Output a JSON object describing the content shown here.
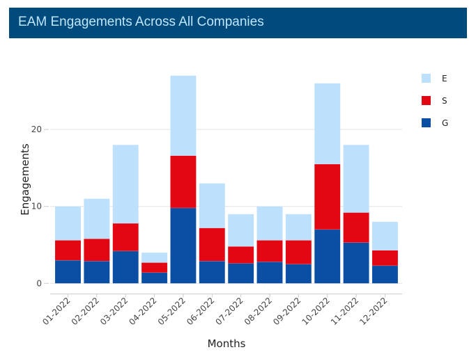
{
  "header": {
    "title": "EAM Engagements Across All Companies",
    "background_color": "#004B7C",
    "text_color": "#BFE5FF"
  },
  "chart_data": {
    "type": "bar",
    "stacked": true,
    "title": "EAM Engagements Across All Companies",
    "xlabel": "Months",
    "ylabel": "Engagements",
    "ylim": [
      0,
      28
    ],
    "yticks": [
      0,
      10,
      20
    ],
    "grid": true,
    "legend_position": "top-right",
    "categories": [
      "01-2022",
      "02-2022",
      "03-2022",
      "04-2022",
      "05-2022",
      "06-2022",
      "07-2022",
      "08-2022",
      "09-2022",
      "10-2022",
      "11-2022",
      "12-2022"
    ],
    "series": [
      {
        "name": "G",
        "color": "#0A4FA3",
        "values": [
          3.0,
          2.9,
          4.2,
          1.4,
          9.8,
          2.9,
          2.6,
          2.8,
          2.5,
          7.0,
          5.3,
          2.3
        ]
      },
      {
        "name": "S",
        "color": "#E30613",
        "values": [
          2.6,
          2.9,
          3.6,
          1.3,
          6.8,
          4.3,
          2.2,
          2.8,
          3.1,
          8.5,
          3.9,
          2.0
        ]
      },
      {
        "name": "E",
        "color": "#BDE0FD",
        "values": [
          4.4,
          5.2,
          10.2,
          1.3,
          10.4,
          5.8,
          4.2,
          4.4,
          3.4,
          10.5,
          8.8,
          3.7
        ]
      }
    ],
    "totals": [
      10,
      11,
      18,
      4,
      27,
      13,
      9,
      10,
      9,
      26,
      18,
      8
    ],
    "legend": [
      {
        "label": "E",
        "color": "#BDE0FD"
      },
      {
        "label": "S",
        "color": "#E30613"
      },
      {
        "label": "G",
        "color": "#0A4FA3"
      }
    ]
  }
}
